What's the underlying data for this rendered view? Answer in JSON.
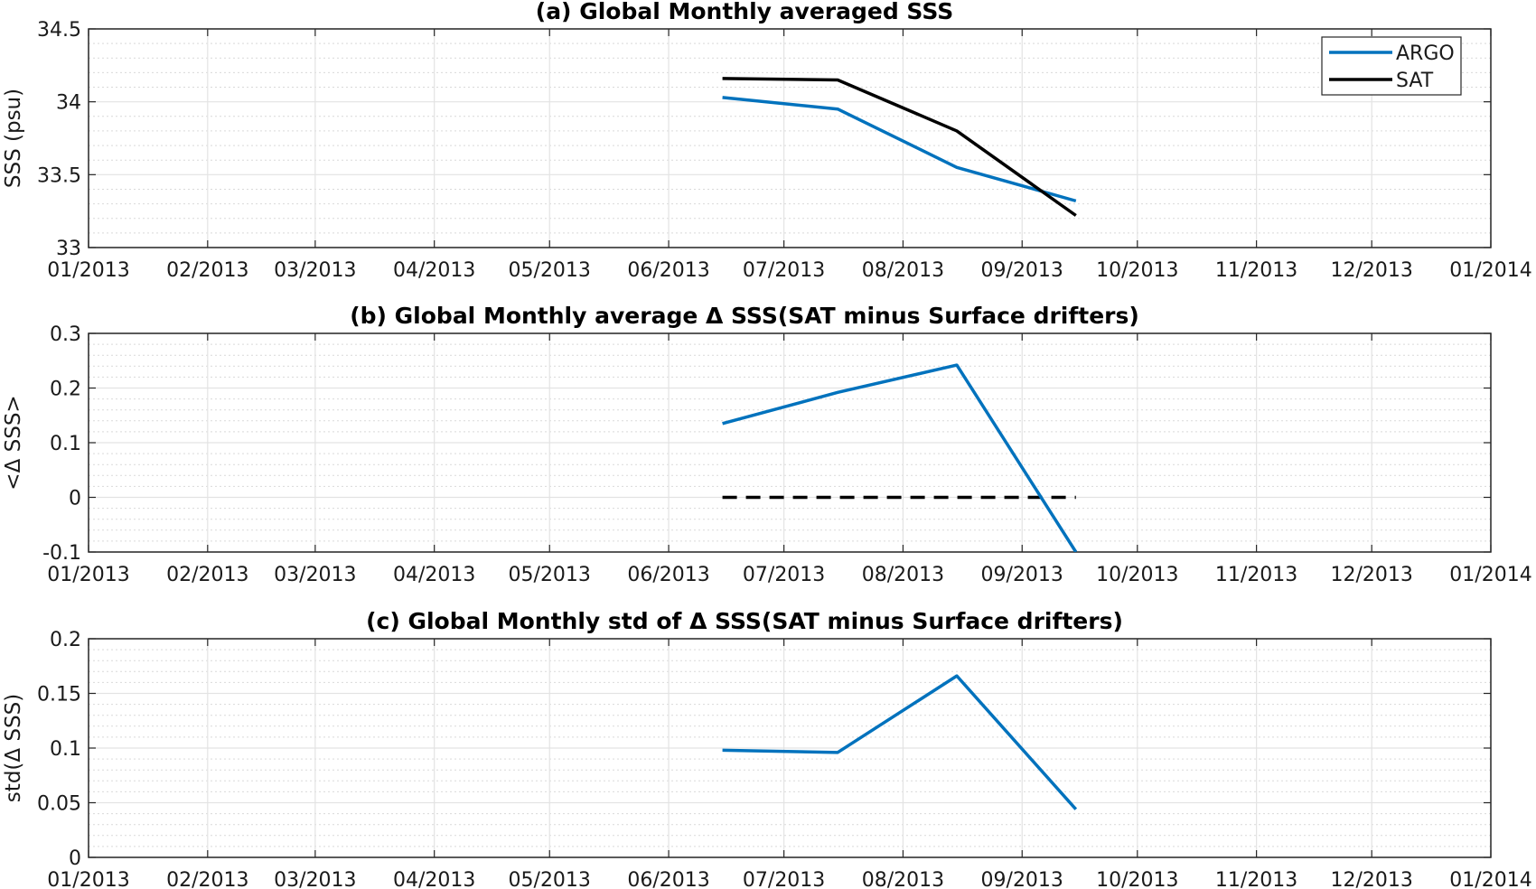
{
  "colors": {
    "ARGO": "#0072BD",
    "SAT": "#000000",
    "zero_line": "#000000"
  },
  "chart_data": [
    {
      "type": "line",
      "title": "(a) Global Monthly averaged SSS",
      "ylabel": "SSS (psu)",
      "ylim": [
        33,
        34.5
      ],
      "yticks": [
        "33",
        "33.5",
        "34",
        "34.5"
      ],
      "ytick_values": [
        33,
        33.5,
        34,
        34.5
      ],
      "xlim": [
        "2013-01-01",
        "2014-01-01"
      ],
      "xtick_labels": [
        "01/2013",
        "02/2013",
        "03/2013",
        "04/2013",
        "05/2013",
        "06/2013",
        "07/2013",
        "08/2013",
        "09/2013",
        "10/2013",
        "11/2013",
        "12/2013",
        "01/2014"
      ],
      "grid": true,
      "minor_grid": true,
      "legend": {
        "placement": "top-right",
        "entries": [
          "ARGO",
          "SAT"
        ]
      },
      "series": [
        {
          "name": "ARGO",
          "x": [
            "2013-06-15",
            "2013-07-15",
            "2013-08-15",
            "2013-09-15"
          ],
          "values": [
            34.03,
            33.95,
            33.55,
            33.32
          ]
        },
        {
          "name": "SAT",
          "x": [
            "2013-06-15",
            "2013-07-15",
            "2013-08-15",
            "2013-09-15"
          ],
          "values": [
            34.16,
            34.15,
            33.8,
            33.22
          ]
        }
      ]
    },
    {
      "type": "line",
      "title": "(b) Global Monthly average Δ SSS(SAT minus Surface drifters)",
      "ylabel": "<Δ SSS>",
      "ylim": [
        -0.1,
        0.3
      ],
      "yticks": [
        "-0.1",
        "0",
        "0.1",
        "0.2",
        "0.3"
      ],
      "ytick_values": [
        -0.1,
        0,
        0.1,
        0.2,
        0.3
      ],
      "xlim": [
        "2013-01-01",
        "2014-01-01"
      ],
      "xtick_labels": [
        "01/2013",
        "02/2013",
        "03/2013",
        "04/2013",
        "05/2013",
        "06/2013",
        "07/2013",
        "08/2013",
        "09/2013",
        "10/2013",
        "11/2013",
        "12/2013",
        "01/2014"
      ],
      "grid": true,
      "minor_grid": true,
      "series": [
        {
          "x": [
            "2013-06-15",
            "2013-07-15",
            "2013-08-15",
            "2013-09-15"
          ],
          "values": [
            0.135,
            0.192,
            0.242,
            -0.1
          ]
        }
      ],
      "reference_line": {
        "value": 0,
        "x_from": "2013-06-15",
        "x_to": "2013-09-15",
        "style": "dashed"
      }
    },
    {
      "type": "line",
      "title": "(c) Global Monthly std of Δ SSS(SAT minus Surface drifters)",
      "ylabel": "std(Δ SSS)",
      "ylim": [
        0,
        0.2
      ],
      "yticks": [
        "0",
        "0.05",
        "0.1",
        "0.15",
        "0.2"
      ],
      "ytick_values": [
        0,
        0.05,
        0.1,
        0.15,
        0.2
      ],
      "xlim": [
        "2013-01-01",
        "2014-01-01"
      ],
      "xtick_labels": [
        "01/2013",
        "02/2013",
        "03/2013",
        "04/2013",
        "05/2013",
        "06/2013",
        "07/2013",
        "08/2013",
        "09/2013",
        "10/2013",
        "11/2013",
        "12/2013",
        "01/2014"
      ],
      "grid": true,
      "minor_grid": true,
      "series": [
        {
          "x": [
            "2013-06-15",
            "2013-07-15",
            "2013-08-15",
            "2013-09-15"
          ],
          "values": [
            0.098,
            0.096,
            0.166,
            0.044
          ]
        }
      ]
    }
  ]
}
